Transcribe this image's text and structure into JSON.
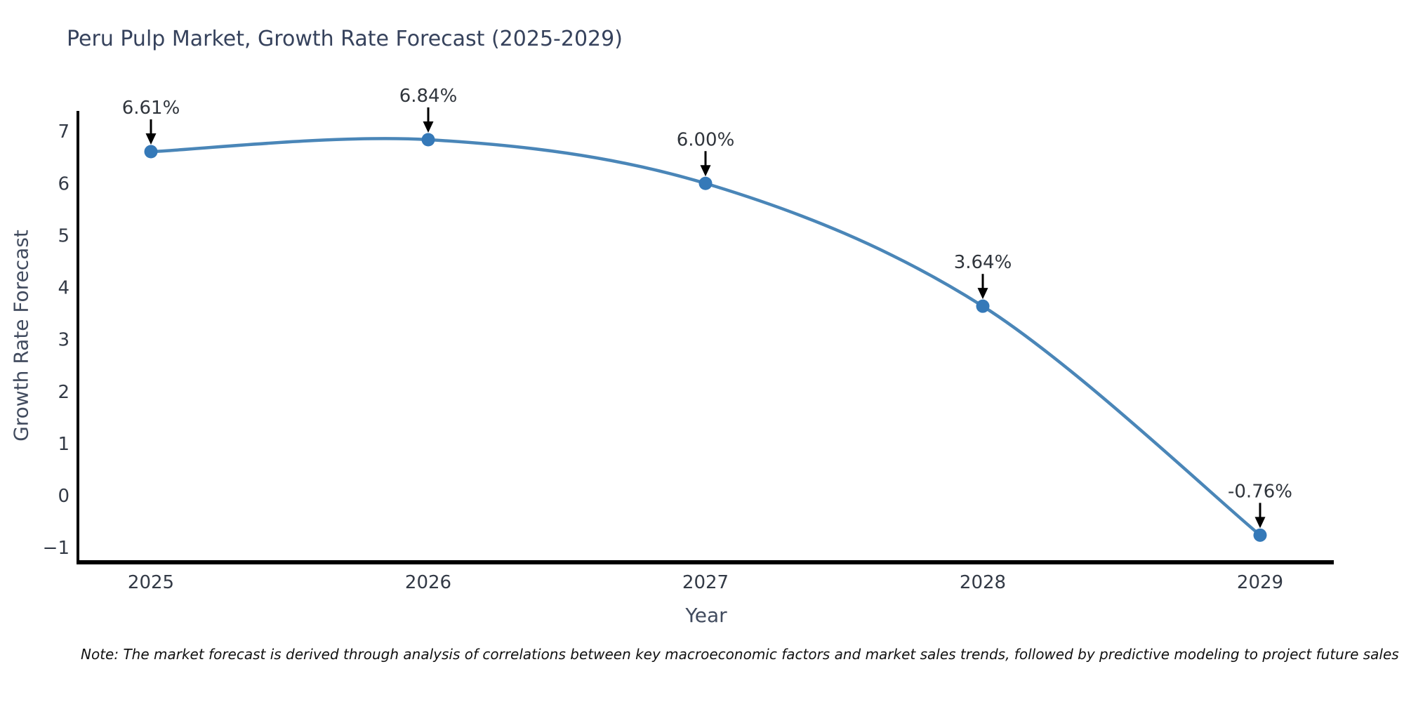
{
  "page": {
    "title": "Peru Pulp Market, Growth Rate Forecast (2025-2029)",
    "note": "Note: The market forecast is derived through analysis of correlations between key macroeconomic factors and market sales trends, followed by predictive modeling to project future sales"
  },
  "chart_data": {
    "type": "line",
    "title": "Peru Pulp Market, Growth Rate Forecast (2025-2029)",
    "xlabel": "Year",
    "ylabel": "Growth Rate Forecast",
    "categories": [
      "2025",
      "2026",
      "2027",
      "2028",
      "2029"
    ],
    "series": [
      {
        "name": "Growth Rate Forecast",
        "values": [
          6.61,
          6.84,
          6.0,
          3.64,
          -0.76
        ]
      }
    ],
    "point_labels": [
      "6.61%",
      "6.84%",
      "6.00%",
      "3.64%",
      "-0.76%"
    ],
    "ylim": [
      -1.3,
      7.35
    ],
    "yticks": [
      -1,
      0,
      1,
      2,
      3,
      4,
      5,
      6,
      7
    ],
    "ytick_labels": [
      "−1",
      "0",
      "1",
      "2",
      "3",
      "4",
      "5",
      "6",
      "7"
    ],
    "grid": false,
    "legend_position": "none",
    "annotation_style": "black-down-arrow",
    "colors": {
      "line": "#4a86b8",
      "marker": "#3579b8",
      "arrow": "#000000",
      "axis_spine": "#000000",
      "tick_text": "#333a46",
      "annotation_text": "#30353c"
    }
  }
}
